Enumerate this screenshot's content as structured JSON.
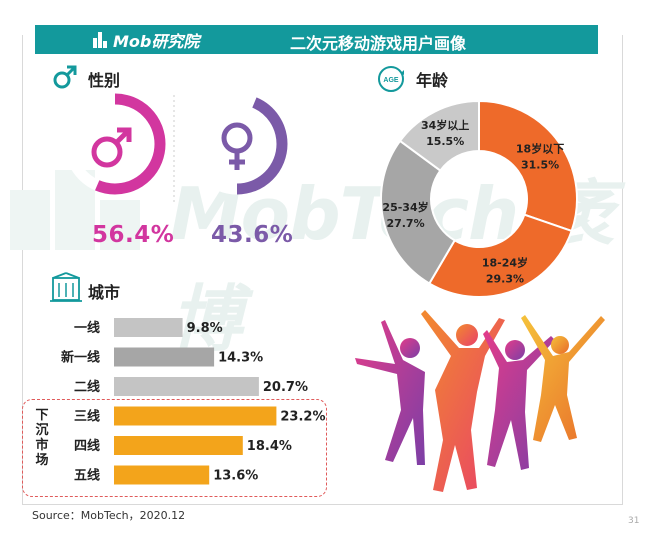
{
  "header": {
    "brand": "Mob研究院",
    "title": "二次元移动游戏用户画像"
  },
  "watermark": {
    "text": "MobTech 袤博"
  },
  "gender": {
    "section_title": "性别",
    "male_pct_text": "56.4%",
    "female_pct_text": "43.6%",
    "male_value": 56.4,
    "female_value": 43.6,
    "colors": {
      "male": "#d2369f",
      "female": "#7b5aa8",
      "track": "#eeeeee"
    }
  },
  "age": {
    "section_title": "年龄",
    "badge": "AGE"
  },
  "city": {
    "section_title": "城市",
    "sink_market_label": "下沉市场"
  },
  "chart_data": [
    {
      "type": "pie",
      "subtype": "donut",
      "categories": [
        "18岁以下",
        "18-24岁",
        "25-34岁",
        "34岁以上"
      ],
      "values": [
        31.5,
        29.3,
        27.7,
        15.5
      ],
      "value_labels": [
        "31.5%",
        "29.3%",
        "27.7%",
        "15.5%"
      ],
      "colors": [
        "#ee6a2a",
        "#ee6a2a",
        "#a6a6a6",
        "#c9c9c9"
      ]
    },
    {
      "type": "bar",
      "orientation": "horizontal",
      "categories": [
        "一线",
        "新一线",
        "二线",
        "三线",
        "四线",
        "五线"
      ],
      "values": [
        9.8,
        14.3,
        20.7,
        23.2,
        18.4,
        13.6
      ],
      "value_labels": [
        "9.8%",
        "14.3%",
        "20.7%",
        "23.2%",
        "18.4%",
        "13.6%"
      ],
      "colors": [
        "#c4c4c4",
        "#a6a6a6",
        "#c4c4c4",
        "#f3a41b",
        "#f3a41b",
        "#f3a41b"
      ]
    }
  ],
  "footer": {
    "source": "Source：MobTech，2020.12",
    "page": "31"
  }
}
